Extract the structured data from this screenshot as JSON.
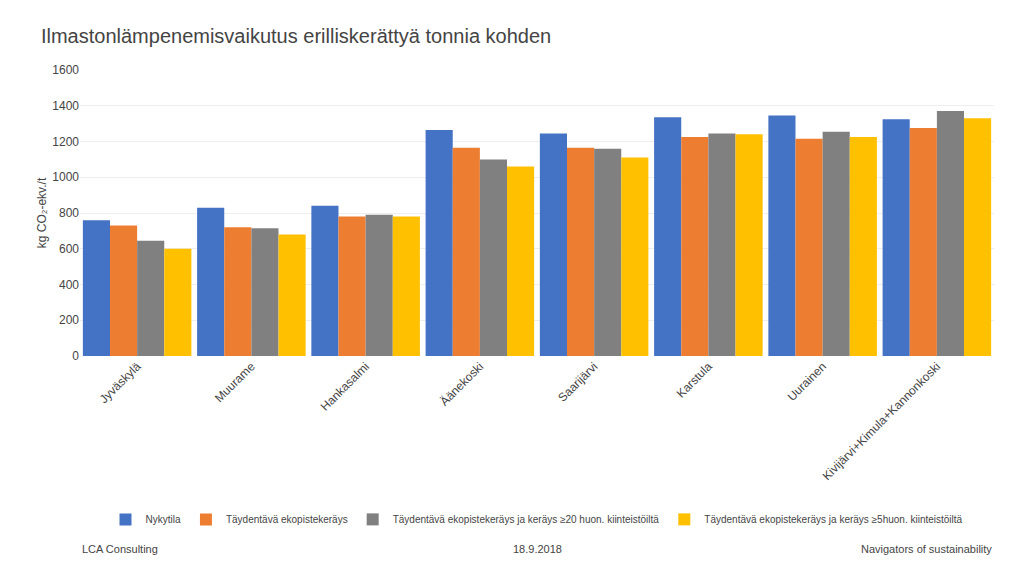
{
  "chart_data": {
    "type": "bar",
    "title": "Ilmastonlämpenemisvaikutus erilliskerättyä tonnia kohden",
    "ylabel": "kg CO₂-ekv./t",
    "categories": [
      "Jyväskylä",
      "Muurame",
      "Hankasalmi",
      "Äänekoski",
      "Saarijärvi",
      "Karstula",
      "Uurainen",
      "Kivijärvi+Kimula+Kannonkoski"
    ],
    "series": [
      {
        "name": "Nykytila",
        "color": "#4472C4",
        "values": [
          760,
          830,
          840,
          1265,
          1245,
          1335,
          1345,
          1325
        ]
      },
      {
        "name": "Täydentävä ekopistekeräys",
        "color": "#ED7D31",
        "values": [
          730,
          720,
          780,
          1165,
          1165,
          1225,
          1215,
          1275
        ]
      },
      {
        "name": "Täydentävä ekopistekeräys ja keräys ≥20 huon. kiinteistöiltä",
        "color": "#808080",
        "values": [
          645,
          715,
          790,
          1100,
          1160,
          1245,
          1255,
          1370
        ]
      },
      {
        "name": "Täydentävä ekopistekeräys ja keräys ≥5huon. kiinteistöiltä",
        "color": "#FFC000",
        "values": [
          600,
          680,
          780,
          1060,
          1110,
          1240,
          1225,
          1330
        ]
      }
    ],
    "ylim": [
      0,
      1600
    ],
    "yticks": [
      0,
      200,
      400,
      600,
      800,
      1000,
      1200,
      1400,
      1600
    ],
    "grid": true,
    "legend": "bottom",
    "annotations": [
      "LCA Consulting",
      "18.9.2018",
      "Navigators of sustainability"
    ]
  }
}
